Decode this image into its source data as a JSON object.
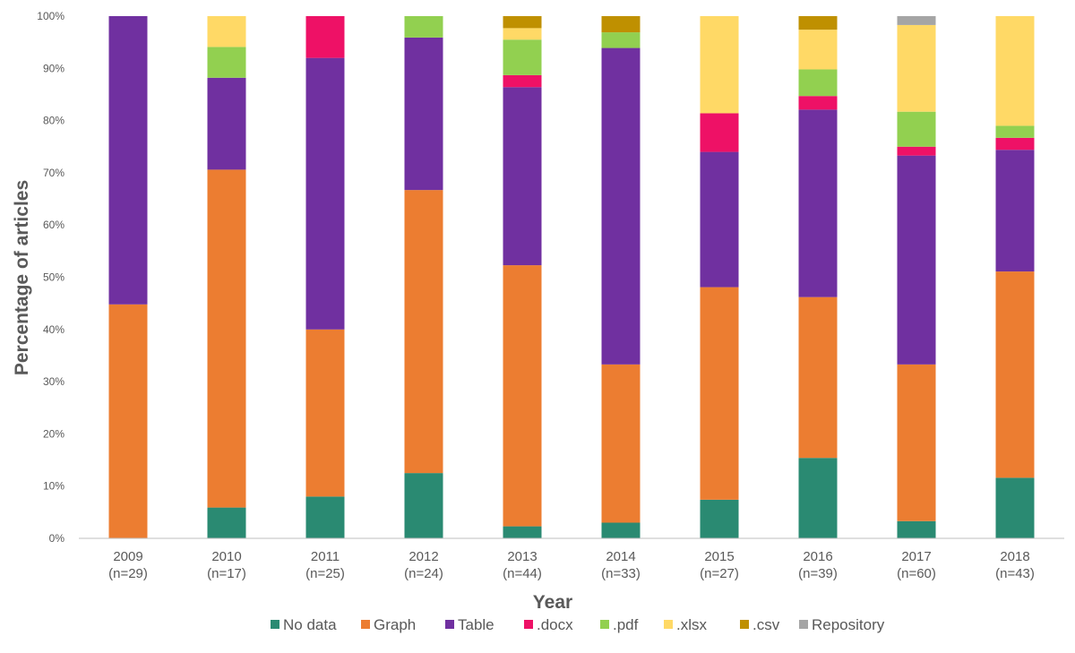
{
  "chart_data": {
    "type": "stacked-bar-100",
    "title": "",
    "xlabel": "Year",
    "ylabel": "Percentage of articles",
    "ylim": [
      0,
      100
    ],
    "y_ticks": [
      "0%",
      "10%",
      "20%",
      "30%",
      "40%",
      "50%",
      "60%",
      "70%",
      "80%",
      "90%",
      "100%"
    ],
    "categories": [
      {
        "year": "2009",
        "n": "(n=29)"
      },
      {
        "year": "2010",
        "n": "(n=17)"
      },
      {
        "year": "2011",
        "n": "(n=25)"
      },
      {
        "year": "2012",
        "n": "(n=24)"
      },
      {
        "year": "2013",
        "n": "(n=44)"
      },
      {
        "year": "2014",
        "n": "(n=33)"
      },
      {
        "year": "2015",
        "n": "(n=27)"
      },
      {
        "year": "2016",
        "n": "(n=39)"
      },
      {
        "year": "2017",
        "n": "(n=60)"
      },
      {
        "year": "2018",
        "n": "(n=43)"
      }
    ],
    "legend_position": "bottom",
    "series": [
      {
        "name": "No data",
        "color": "#2a8a72",
        "values": [
          0,
          5.9,
          8.0,
          12.5,
          2.3,
          3.0,
          7.4,
          15.4,
          3.3,
          11.6
        ]
      },
      {
        "name": "Graph",
        "color": "#ec7d31",
        "values": [
          44.8,
          64.7,
          32.0,
          54.2,
          50.0,
          30.3,
          40.7,
          30.8,
          30.0,
          39.5
        ]
      },
      {
        "name": "Table",
        "color": "#7030a0",
        "values": [
          55.2,
          17.6,
          52.0,
          29.2,
          34.1,
          60.6,
          25.9,
          35.9,
          40.0,
          23.3
        ]
      },
      {
        "name": ".docx",
        "color": "#ee1166",
        "values": [
          0,
          0,
          8.0,
          0,
          2.3,
          0,
          7.4,
          2.6,
          1.7,
          2.3
        ]
      },
      {
        "name": ".pdf",
        "color": "#92d050",
        "values": [
          0,
          5.9,
          0,
          4.1,
          6.8,
          3.0,
          0,
          5.1,
          6.7,
          2.3
        ]
      },
      {
        "name": ".xlsx",
        "color": "#ffd966",
        "values": [
          0,
          5.9,
          0,
          0,
          2.2,
          0,
          18.6,
          7.6,
          16.6,
          21.0
        ]
      },
      {
        "name": ".csv",
        "color": "#bf9000",
        "values": [
          0,
          0,
          0,
          0,
          2.3,
          3.1,
          0,
          2.6,
          0,
          0
        ]
      },
      {
        "name": "Repository",
        "color": "#a5a5a5",
        "values": [
          0,
          0,
          0,
          0,
          0,
          0,
          0,
          0,
          1.7,
          0
        ]
      }
    ]
  }
}
